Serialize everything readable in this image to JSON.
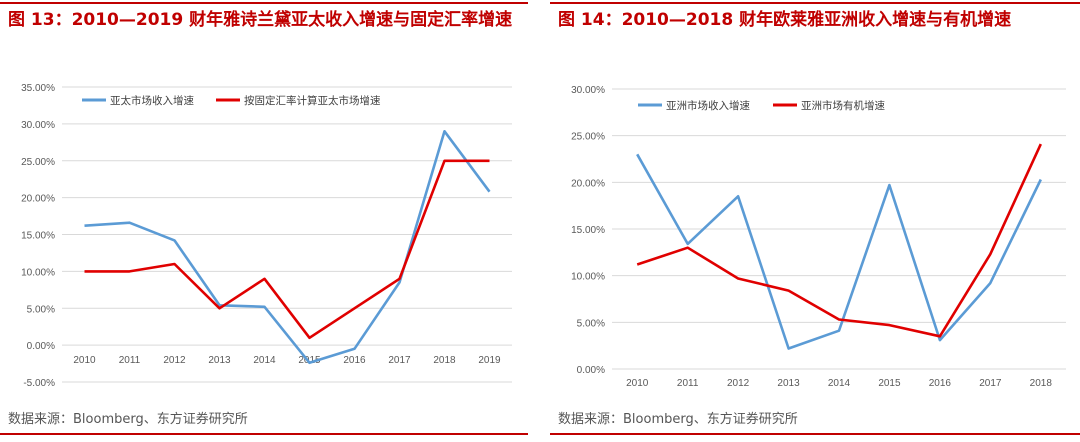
{
  "source_label": "数据来源：Bloomberg、东方证券研究所",
  "colors": {
    "title": "#c00000",
    "blue": "#5b9bd5",
    "red": "#e00000",
    "grid": "#d9d9d9",
    "axis": "#595959"
  },
  "chart_data": [
    {
      "type": "line",
      "title": "图 13：2010—2019 财年雅诗兰黛亚太收入增速与固定汇率增速",
      "categories": [
        "2010",
        "2011",
        "2012",
        "2013",
        "2014",
        "2015",
        "2016",
        "2017",
        "2018",
        "2019"
      ],
      "yticks": [
        "35.00%",
        "30.00%",
        "25.00%",
        "20.00%",
        "15.00%",
        "10.00%",
        "5.00%",
        "0.00%",
        "-5.00%"
      ],
      "ylim": [
        -5,
        35
      ],
      "legend_position": "top-left",
      "series": [
        {
          "name": "亚太市场收入增速",
          "color": "blue",
          "values": [
            16.2,
            16.6,
            14.2,
            5.4,
            5.2,
            -2.4,
            -0.5,
            8.5,
            29.0,
            20.8
          ]
        },
        {
          "name": "按固定汇率计算亚太市场增速",
          "color": "red",
          "values": [
            10.0,
            10.0,
            11.0,
            5.0,
            9.0,
            1.0,
            5.0,
            9.0,
            25.0,
            25.0
          ]
        }
      ]
    },
    {
      "type": "line",
      "title": "图 14：2010—2018 财年欧莱雅亚洲收入增速与有机增速",
      "categories": [
        "2010",
        "2011",
        "2012",
        "2013",
        "2014",
        "2015",
        "2016",
        "2017",
        "2018"
      ],
      "yticks": [
        "30.00%",
        "25.00%",
        "20.00%",
        "15.00%",
        "10.00%",
        "5.00%",
        "0.00%"
      ],
      "ylim": [
        0,
        30
      ],
      "legend_position": "top-left",
      "series": [
        {
          "name": "亚洲市场收入增速",
          "color": "blue",
          "values": [
            23.0,
            13.4,
            18.5,
            2.2,
            4.1,
            19.7,
            3.1,
            9.2,
            20.3
          ]
        },
        {
          "name": "亚洲市场有机增速",
          "color": "red",
          "values": [
            11.2,
            13.0,
            9.7,
            8.4,
            5.3,
            4.7,
            3.5,
            12.3,
            24.1
          ]
        }
      ]
    }
  ]
}
